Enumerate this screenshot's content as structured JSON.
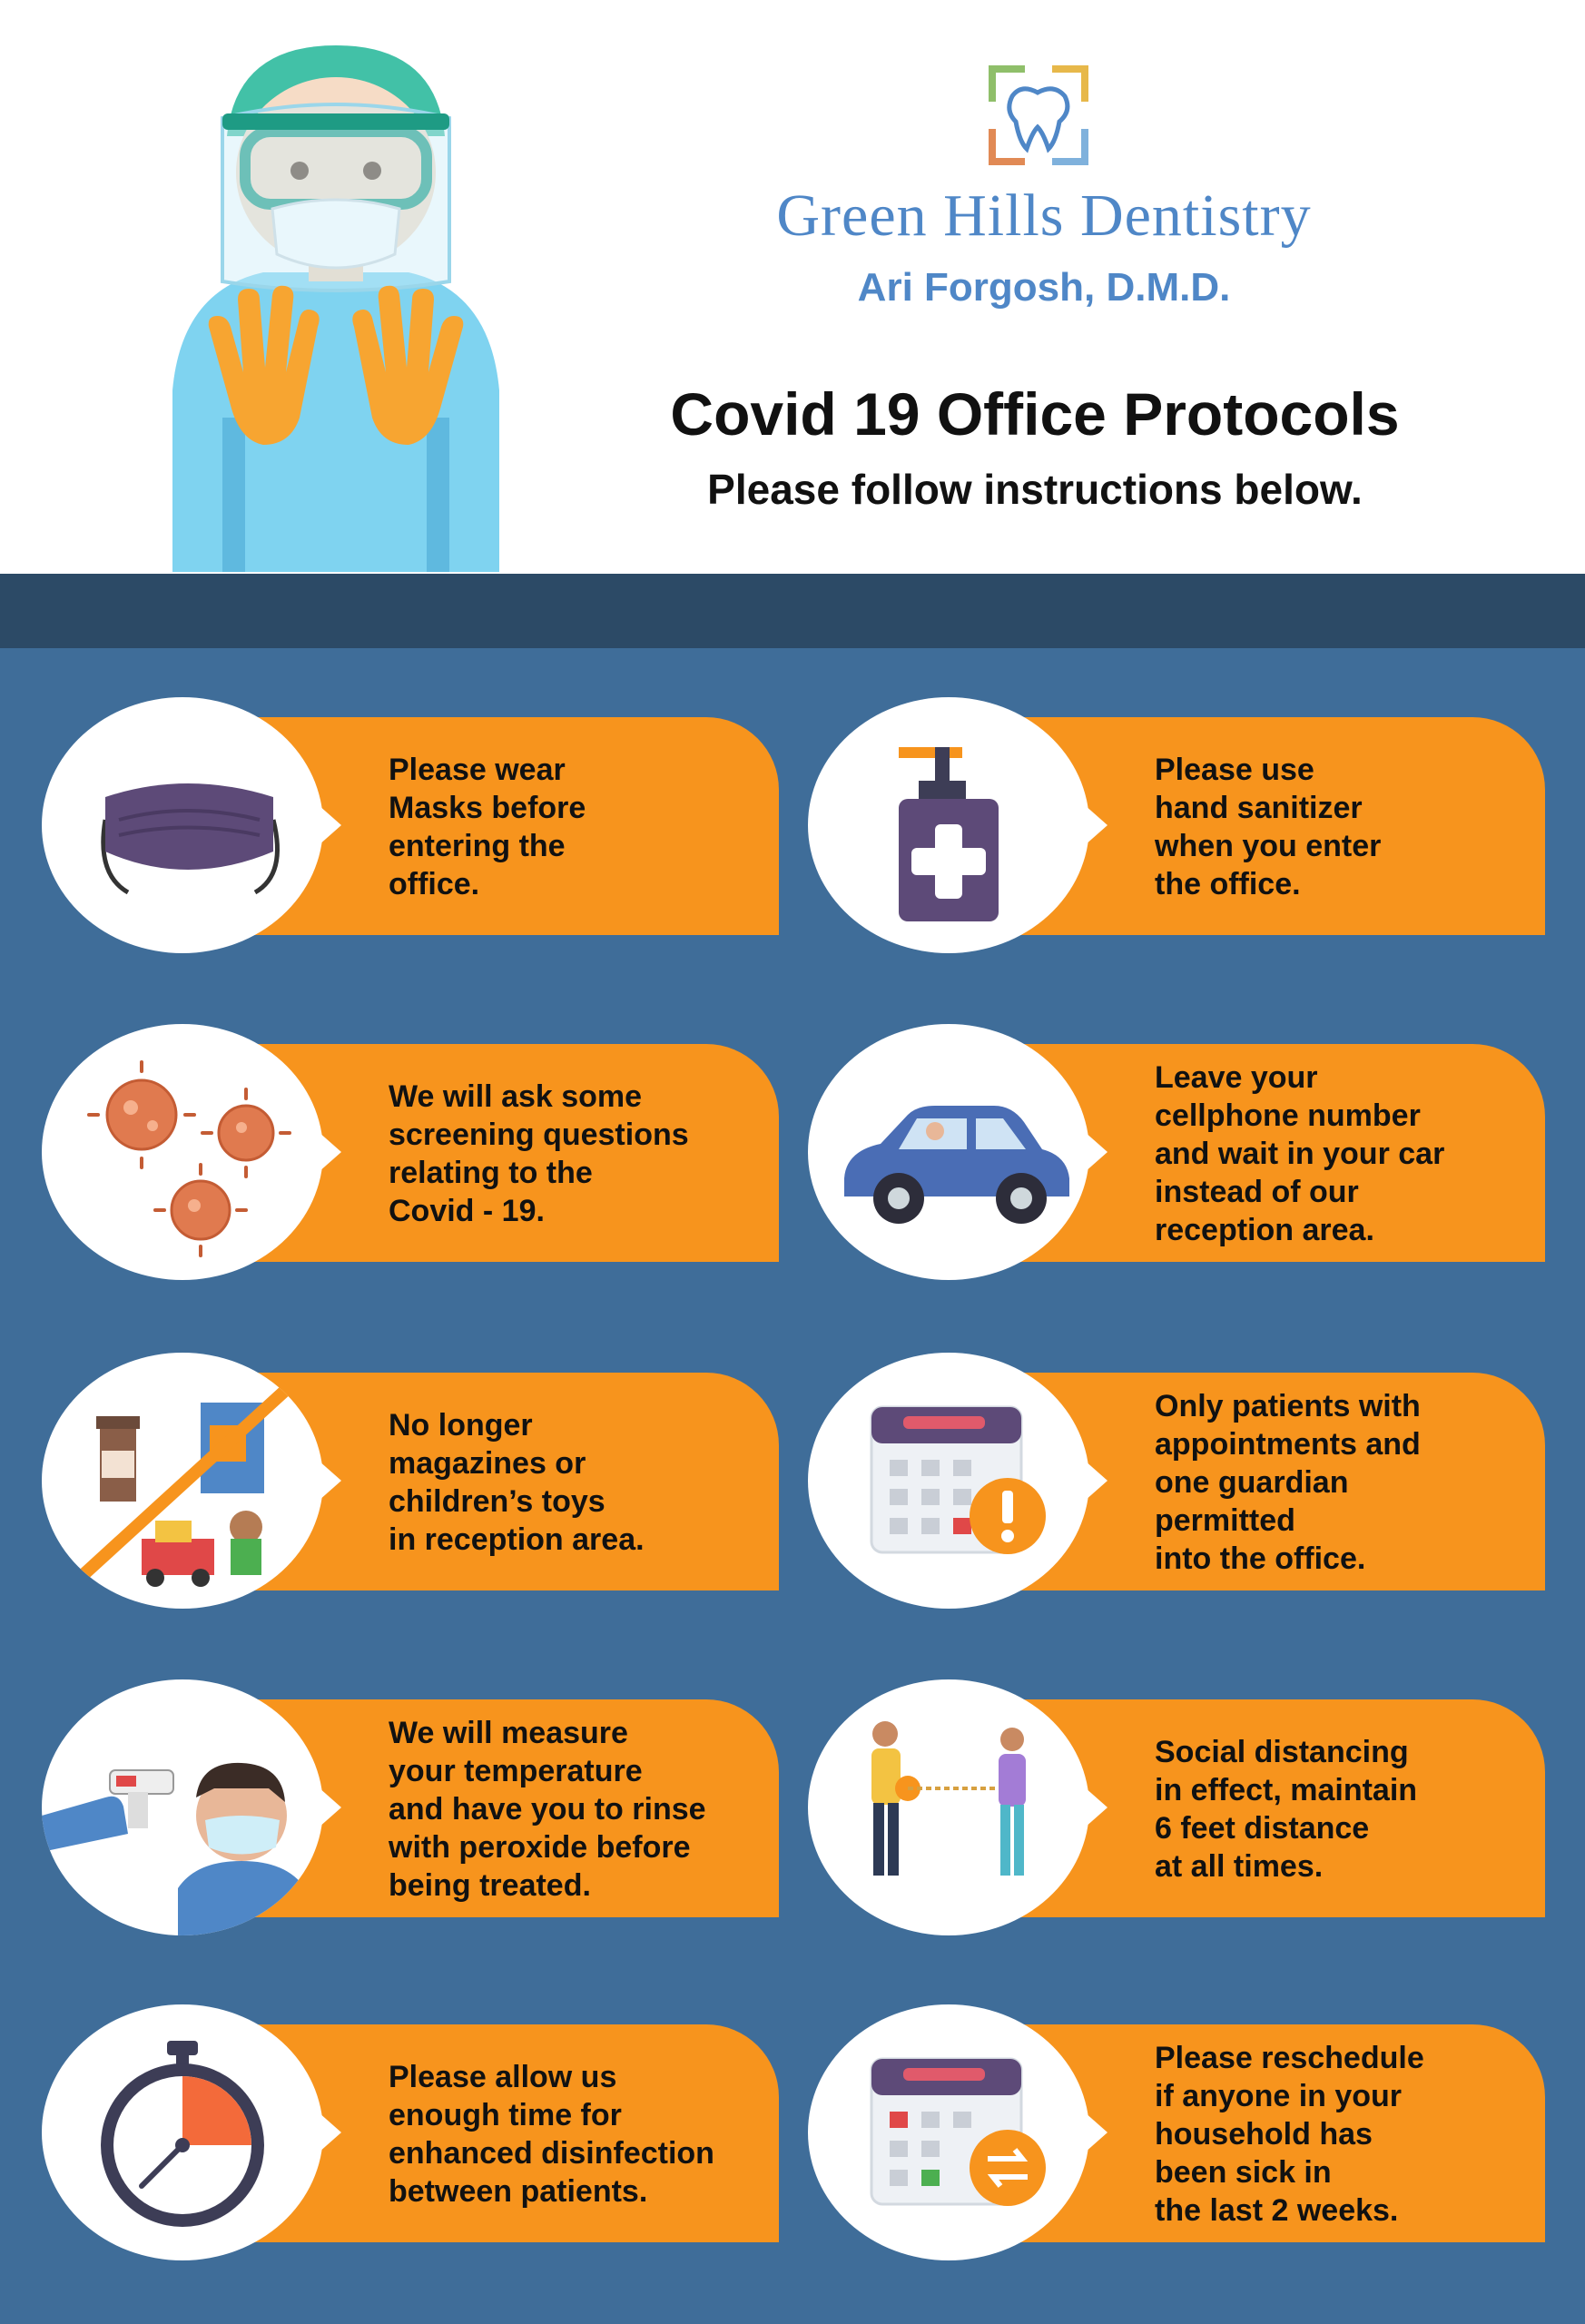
{
  "brand": {
    "practice_name": "Green Hills Dentistry",
    "doctor": "Ari Forgosh, D.M.D.",
    "logo_icon": "tooth-logo-icon",
    "colors": {
      "brand_blue": "#4f87c7",
      "navy_band": "#2c4a66",
      "panel_blue": "#3f6d99",
      "orange": "#f7941d"
    }
  },
  "header": {
    "title": "Covid 19 Office Protocols",
    "subtitle": "Please follow instructions below.",
    "illustration": "health-worker-ppe-icon"
  },
  "protocols": [
    {
      "icon": "face-mask-icon",
      "text": "Please wear\nMasks before\nentering the\noffice."
    },
    {
      "icon": "hand-sanitizer-icon",
      "text": "Please use\nhand sanitizer\nwhen you enter\nthe office."
    },
    {
      "icon": "virus-icon",
      "text": "We will ask some\nscreening questions\nrelating to the\nCovid - 19."
    },
    {
      "icon": "car-icon",
      "text": "Leave your\ncellphone number\nand wait in your car\ninstead of our\nreception area."
    },
    {
      "icon": "no-magazines-toys-icon",
      "text": "No longer\nmagazines or\nchildren’s toys\nin reception area."
    },
    {
      "icon": "calendar-alert-icon",
      "text": "Only patients with\nappointments and\none guardian\npermitted\ninto the office."
    },
    {
      "icon": "temperature-check-icon",
      "text": "We will measure\nyour temperature\nand have you to rinse\nwith peroxide before\nbeing treated."
    },
    {
      "icon": "social-distancing-icon",
      "text": "Social distancing\nin effect, maintain\n6 feet distance\nat all times."
    },
    {
      "icon": "stopwatch-icon",
      "text": "Please allow us\nenough time for\nenhanced disinfection\nbetween patients."
    },
    {
      "icon": "calendar-reschedule-icon",
      "text": "Please reschedule\nif anyone in your\nhousehold has\nbeen sick in\nthe last 2 weeks."
    }
  ]
}
